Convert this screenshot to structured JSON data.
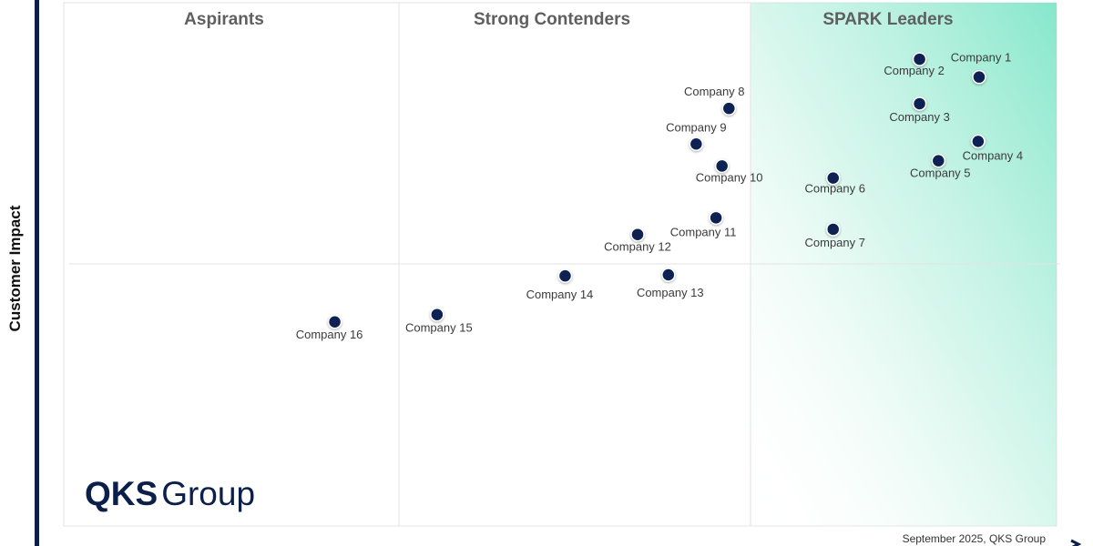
{
  "chart_data": {
    "type": "scatter",
    "ylabel": "Customer Impact",
    "xlabel": "",
    "quadrants": [
      "Aspirants",
      "Strong Contenders",
      "SPARK Leaders"
    ],
    "points": [
      {
        "label": "Company 1",
        "x": 92.2,
        "y": 85.8
      },
      {
        "label": "Company 2",
        "x": 86.2,
        "y": 89.2
      },
      {
        "label": "Company 3",
        "x": 86.2,
        "y": 80.7
      },
      {
        "label": "Company 4",
        "x": 92.1,
        "y": 73.5
      },
      {
        "label": "Company 5",
        "x": 88.1,
        "y": 69.8
      },
      {
        "label": "Company 6",
        "x": 77.5,
        "y": 66.5
      },
      {
        "label": "Company 7",
        "x": 77.5,
        "y": 56.7
      },
      {
        "label": "Company 8",
        "x": 67.0,
        "y": 79.8
      },
      {
        "label": "Company 9",
        "x": 63.7,
        "y": 73.0
      },
      {
        "label": "Company 10",
        "x": 66.3,
        "y": 68.8
      },
      {
        "label": "Company 11",
        "x": 65.7,
        "y": 58.9
      },
      {
        "label": "Company 12",
        "x": 57.8,
        "y": 55.7
      },
      {
        "label": "Company 13",
        "x": 60.9,
        "y": 48.0
      },
      {
        "label": "Company 14",
        "x": 50.5,
        "y": 47.8
      },
      {
        "label": "Company 15",
        "x": 37.6,
        "y": 40.4
      },
      {
        "label": "Company 16",
        "x": 27.3,
        "y": 39.0
      }
    ],
    "xlim": [
      0,
      100
    ],
    "ylim": [
      0,
      100
    ],
    "grid": true
  },
  "logo": {
    "part1": "QKS",
    "part2": "Group"
  },
  "footer": "September 2025, QKS Group",
  "colors": {
    "point": "#0b2452",
    "axis": "#0b1f4a",
    "leader_gradient": "#7fe6c8",
    "grid": "#e6e6e6"
  }
}
